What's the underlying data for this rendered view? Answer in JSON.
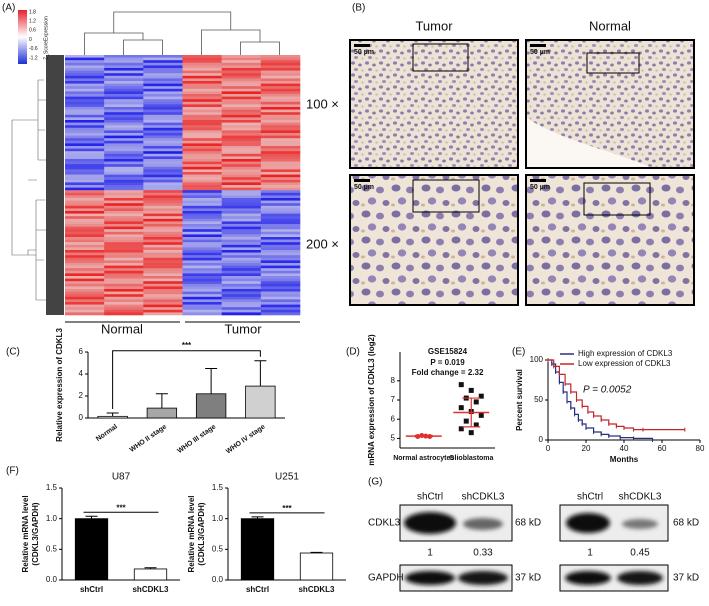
{
  "panels": [
    "(A)",
    "(B)",
    "(C)",
    "(D)",
    "(E)",
    "(F)",
    "(G)"
  ],
  "heatmap": {
    "colorbar_title": "Z_ScoreExpression",
    "colorbar_ticks": [
      "1.8",
      "1.2",
      "0.6",
      "0",
      "-0.6",
      "-1.2"
    ],
    "groups": [
      "Normal",
      "Tumor"
    ],
    "magnifications": [
      "100 ×",
      "200 ×"
    ]
  },
  "ihc": {
    "columns": [
      "Tumor",
      "Normal"
    ],
    "scale_bar": "50 µm"
  },
  "chart_data": [
    {
      "type": "bar",
      "y_label": "Relative expression of CDKL3",
      "categories": [
        "Normal",
        "WHO II stage",
        "WHO III stage",
        "WHO IV stage"
      ],
      "values": [
        0.15,
        0.9,
        2.2,
        2.9
      ],
      "errors": [
        0.3,
        1.3,
        2.3,
        2.3
      ],
      "colors": [
        "#ffffff",
        "#a6a6a6",
        "#7f7f7f",
        "#d0d0d0"
      ],
      "ylim": [
        0,
        6
      ],
      "yticks": [
        0,
        2,
        4,
        6
      ],
      "significance": "***"
    },
    {
      "type": "dot",
      "title": "GSE15824",
      "subtitle": [
        "P = 0.019",
        "Fold change = 2.32"
      ],
      "y_label": "mRNA expression of CDKL3 (log2)",
      "categories": [
        "Normal astrocytes",
        "Glioblastoma"
      ],
      "groups": [
        {
          "values": [
            5.1,
            5.15,
            5.12,
            5.1
          ],
          "mean": 5.12,
          "sd": 0.03,
          "color": "#e0312f",
          "marker": "circle"
        },
        {
          "values": [
            7.8,
            7.5,
            7.2,
            7.1,
            6.9,
            6.6,
            6.4,
            6.2,
            5.9,
            5.7,
            5.5,
            5.3
          ],
          "mean": 6.35,
          "sd": 0.75,
          "color": "#111111",
          "marker": "square"
        }
      ],
      "line_color": "#e0312f",
      "ylim": [
        4.5,
        9.5
      ],
      "yticks": [
        5,
        6,
        7,
        8
      ]
    },
    {
      "type": "step",
      "y_label": "Percent survival",
      "x_label": "Months",
      "annotation": "P = 0.0052",
      "xlim": [
        0,
        80
      ],
      "xticks": [
        0,
        20,
        40,
        60,
        80
      ],
      "ylim": [
        0,
        100
      ],
      "yticks": [
        0,
        50,
        100
      ],
      "series": [
        {
          "name": "High expression of CDKL3",
          "color": "#2b2f7f",
          "x": [
            0,
            2,
            4,
            6,
            8,
            10,
            12,
            14,
            16,
            18,
            20,
            24,
            28,
            32,
            38,
            45,
            55
          ],
          "values": [
            100,
            95,
            85,
            72,
            60,
            48,
            40,
            32,
            25,
            20,
            15,
            10,
            7,
            5,
            3,
            2,
            0
          ]
        },
        {
          "name": "Low expression of CDKL3",
          "color": "#c0282c",
          "x": [
            0,
            3,
            6,
            9,
            12,
            15,
            18,
            21,
            24,
            28,
            32,
            36,
            40,
            45,
            50,
            72
          ],
          "values": [
            100,
            92,
            82,
            70,
            60,
            50,
            42,
            35,
            30,
            25,
            20,
            17,
            15,
            13,
            13,
            13
          ]
        }
      ]
    },
    {
      "type": "bar",
      "title": "U87",
      "y_label": [
        "Relative mRNA level",
        "(CDKL3/GAPDH)"
      ],
      "categories": [
        "shCtrl",
        "shCDKL3"
      ],
      "values": [
        1.0,
        0.18
      ],
      "errors": [
        0.04,
        0.02
      ],
      "colors": [
        "#000000",
        "#ffffff"
      ],
      "ylim": [
        0,
        1.5
      ],
      "yticks": [
        {
          "value": 0,
          "label": "0.0"
        },
        0.5,
        {
          "value": 1,
          "label": "1.0"
        },
        1.5
      ],
      "significance": "***"
    },
    {
      "type": "bar",
      "title": "U251",
      "y_label": [
        "Relative mRNA level",
        "(CDKL3/GAPDH)"
      ],
      "categories": [
        "shCtrl",
        "shCDKL3"
      ],
      "values": [
        1.0,
        0.44
      ],
      "errors": [
        0.03,
        0.01
      ],
      "colors": [
        "#000000",
        "#ffffff"
      ],
      "ylim": [
        0,
        1.5
      ],
      "yticks": [
        {
          "value": 0,
          "label": "0.0"
        },
        0.5,
        {
          "value": 1,
          "label": "1.0"
        },
        1.5
      ],
      "significance": "***"
    }
  ],
  "blot": {
    "proteins": [
      "CDKL3",
      "GAPDH"
    ],
    "sizes": [
      "68 kD",
      "37 kD"
    ],
    "sets": [
      {
        "lanes": [
          "shCtrl",
          "shCDKL3"
        ],
        "ratios": [
          1,
          0.33
        ]
      },
      {
        "lanes": [
          "shCtrl",
          "shCDKL3"
        ],
        "ratios": [
          1,
          0.45
        ]
      }
    ]
  }
}
